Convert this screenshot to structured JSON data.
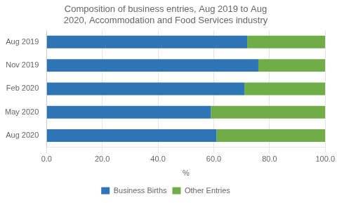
{
  "chart_data": {
    "type": "bar",
    "orientation": "horizontal",
    "stacked": true,
    "title": "Composition of business entries, Aug 2019 to Aug\n2020, Accommodation and Food Services industry",
    "xlabel": "%",
    "categories": [
      "Aug 2019",
      "Nov 2019",
      "Feb 2020",
      "May 2020",
      "Aug 2020"
    ],
    "series": [
      {
        "name": "Business Births",
        "color": "#2E75B6",
        "values": [
          72.0,
          76.0,
          71.0,
          59.0,
          61.0
        ]
      },
      {
        "name": "Other Entries",
        "color": "#70AD47",
        "values": [
          28.0,
          24.0,
          29.0,
          41.0,
          39.0
        ]
      }
    ],
    "xlim": [
      0,
      100
    ],
    "xticks": [
      {
        "value": 0,
        "label": "0.0"
      },
      {
        "value": 20,
        "label": "20.0"
      },
      {
        "value": 40,
        "label": "40.0"
      },
      {
        "value": 60,
        "label": "60.0"
      },
      {
        "value": 80,
        "label": "80.0"
      },
      {
        "value": 100,
        "label": "100.0"
      }
    ],
    "grid": true,
    "legend": "bottom"
  }
}
